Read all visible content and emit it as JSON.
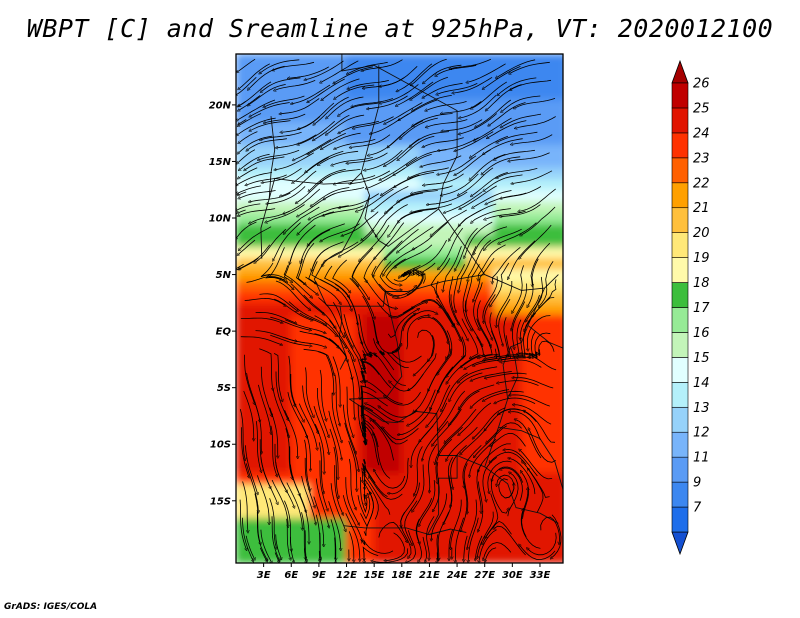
{
  "title": "WBPT [C] and Sreamline at 925hPa, VT: 2020012100",
  "credit": "GrADS: IGES/COLA",
  "map": {
    "variable": "WBPT [C]",
    "overlay": "Sreamline",
    "level": "925hPa",
    "valid_time": "2020012100",
    "lon_range": [
      0,
      35.5
    ],
    "lat_range": [
      -20.5,
      24.5
    ],
    "lat_ticks": [
      {
        "value": 20,
        "label": "20N"
      },
      {
        "value": 15,
        "label": "15N"
      },
      {
        "value": 10,
        "label": "10N"
      },
      {
        "value": 5,
        "label": "5N"
      },
      {
        "value": 0,
        "label": "EQ"
      },
      {
        "value": -5,
        "label": "5S"
      },
      {
        "value": -10,
        "label": "10S"
      },
      {
        "value": -15,
        "label": "15S"
      }
    ],
    "lon_ticks": [
      {
        "value": 3,
        "label": "3E"
      },
      {
        "value": 6,
        "label": "6E"
      },
      {
        "value": 9,
        "label": "9E"
      },
      {
        "value": 12,
        "label": "12E"
      },
      {
        "value": 15,
        "label": "15E"
      },
      {
        "value": 18,
        "label": "18E"
      },
      {
        "value": 21,
        "label": "21E"
      },
      {
        "value": 24,
        "label": "24E"
      },
      {
        "value": 27,
        "label": "27E"
      },
      {
        "value": 30,
        "label": "30E"
      },
      {
        "value": 33,
        "label": "33E"
      }
    ],
    "colorbar": [
      {
        "label": "7",
        "color": "#1e6eeb"
      },
      {
        "label": "9",
        "color": "#3c87f0"
      },
      {
        "label": "11",
        "color": "#5a9bf5"
      },
      {
        "label": "12",
        "color": "#78b4fa"
      },
      {
        "label": "13",
        "color": "#96d2fa"
      },
      {
        "label": "14",
        "color": "#b4f0fa"
      },
      {
        "label": "15",
        "color": "#e1ffff"
      },
      {
        "label": "16",
        "color": "#c3f5b9"
      },
      {
        "label": "17",
        "color": "#96eb96"
      },
      {
        "label": "18",
        "color": "#3cbe3c"
      },
      {
        "label": "19",
        "color": "#fffaaa"
      },
      {
        "label": "20",
        "color": "#ffe878"
      },
      {
        "label": "21",
        "color": "#ffc03c"
      },
      {
        "label": "22",
        "color": "#ffa000"
      },
      {
        "label": "23",
        "color": "#ff6000"
      },
      {
        "label": "24",
        "color": "#ff3200"
      },
      {
        "label": "25",
        "color": "#e11400"
      },
      {
        "label": "26",
        "color": "#c00000"
      }
    ],
    "colorbar_low_color": "#1450d2",
    "colorbar_high_color": "#a50000"
  }
}
